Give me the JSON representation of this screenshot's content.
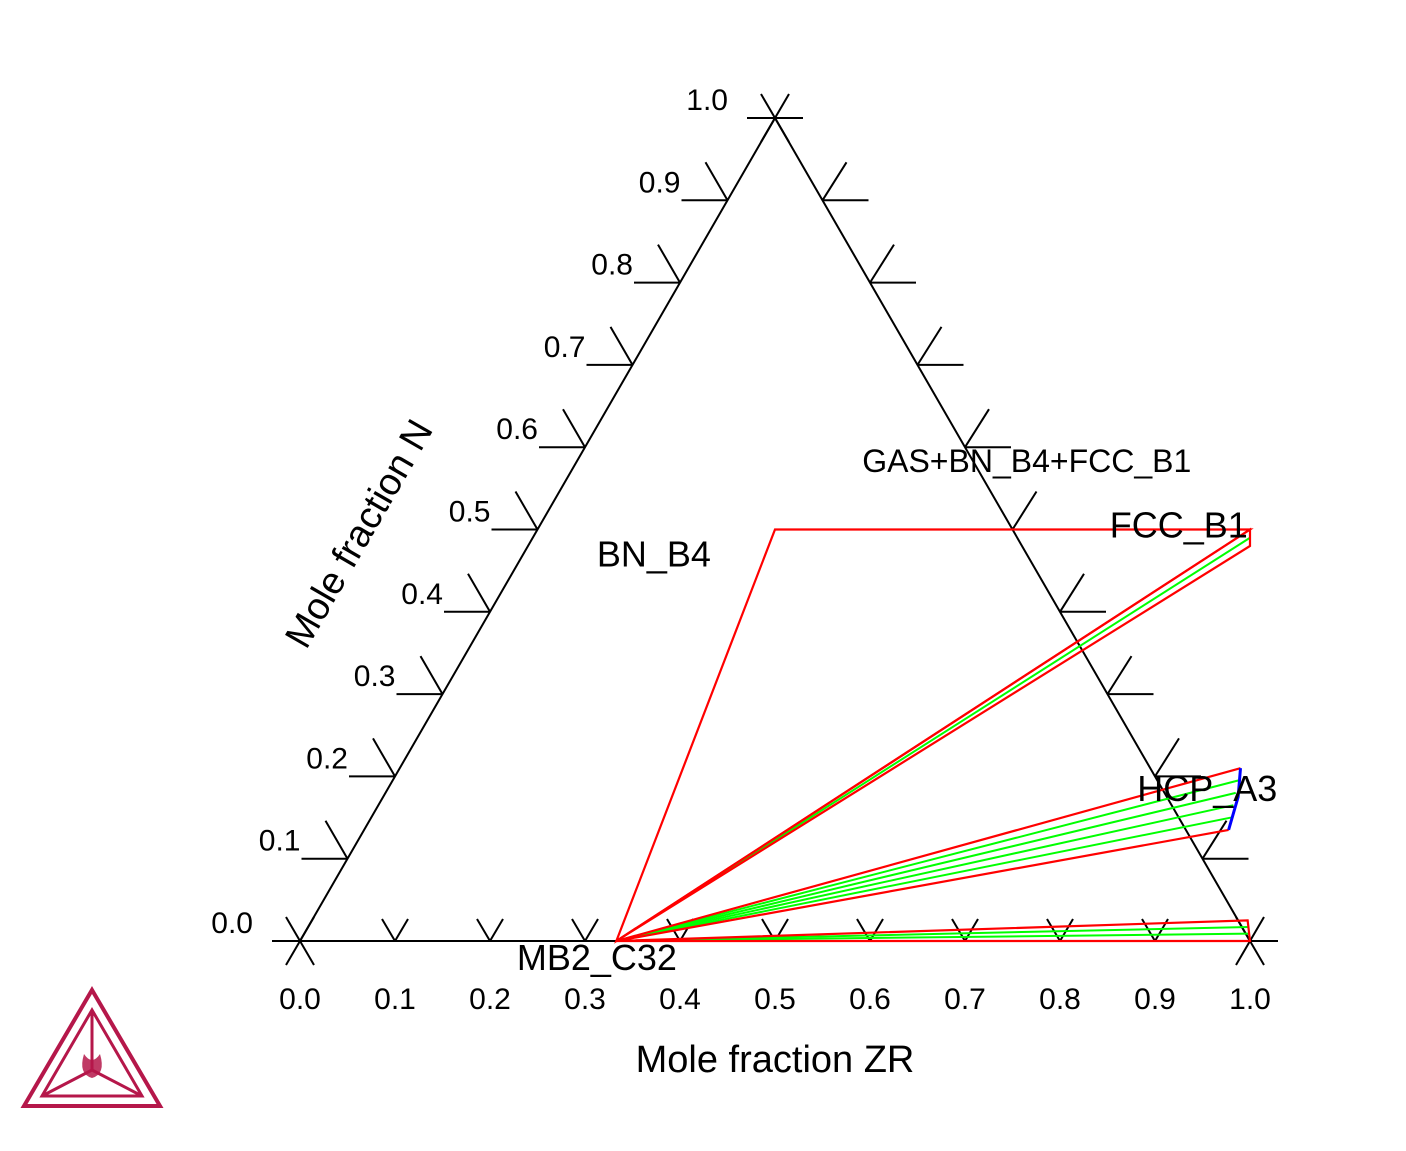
{
  "colors": {
    "axis": "#000000",
    "three_phase_boundary": "#ff0000",
    "tie_line": "#00ff00",
    "phase_boundary_blue": "#0000ff",
    "logo": "#b5174a"
  },
  "logo": {
    "icon": "thermo-calc-logo-icon"
  },
  "chart_data": {
    "type": "ternary",
    "title": "",
    "axes": {
      "bottom": {
        "label": "Mole fraction ZR",
        "ticks": [
          "0.0",
          "0.1",
          "0.2",
          "0.3",
          "0.4",
          "0.5",
          "0.6",
          "0.7",
          "0.8",
          "0.9",
          "1.0"
        ],
        "range": [
          0,
          1
        ]
      },
      "left": {
        "label": "Mole fraction N",
        "ticks": [
          "0.0",
          "0.1",
          "0.2",
          "0.3",
          "0.4",
          "0.5",
          "0.6",
          "0.7",
          "0.8",
          "0.9",
          "1.0"
        ],
        "range": [
          0,
          1
        ]
      }
    },
    "phase_labels": [
      {
        "text": "GAS+BN_B4+FCC_B1",
        "zr": 0.48,
        "n": 0.57,
        "kind": "region"
      },
      {
        "text": "BN_B4",
        "zr": 0.145,
        "n": 0.455,
        "kind": "phase"
      },
      {
        "text": "FCC_B1",
        "zr": 0.68,
        "n": 0.49,
        "kind": "phase"
      },
      {
        "text": "HCP_A3",
        "zr": 0.87,
        "n": 0.17,
        "kind": "phase"
      },
      {
        "text": "MB2_C32",
        "zr": 0.33,
        "n": -0.035,
        "kind": "phase"
      }
    ],
    "three_phase_triangles": [
      {
        "name": "BN_B4+FCC_B1+MB2_C32",
        "vertices": [
          [
            0.25,
            0.5
          ],
          [
            0.75,
            0.5
          ],
          [
            0.333,
            0.0
          ]
        ]
      },
      {
        "name": "FCC_B1+MB2_C32",
        "vertices": [
          [
            0.333,
            0.0
          ],
          [
            0.75,
            0.5
          ],
          [
            0.76,
            0.48
          ]
        ]
      },
      {
        "name": "MB2_C32+FCC_B1+HCP_A3 upper",
        "vertices": [
          [
            0.333,
            0.0
          ],
          [
            0.885,
            0.21
          ]
        ]
      },
      {
        "name": "MB2_C32+HCP_A3 lower",
        "vertices": [
          [
            0.333,
            0.0
          ],
          [
            0.91,
            0.135
          ]
        ]
      },
      {
        "name": "MB2_C32+HCP_A3+ZR",
        "vertices": [
          [
            0.333,
            0.0
          ],
          [
            0.985,
            0.025
          ],
          [
            1.0,
            0.0
          ]
        ]
      }
    ],
    "tie_lines": [
      {
        "from": [
          0.333,
          0.0
        ],
        "to": [
          0.755,
          0.49
        ]
      },
      {
        "from": [
          0.333,
          0.0
        ],
        "to": [
          0.89,
          0.195
        ]
      },
      {
        "from": [
          0.333,
          0.0
        ],
        "to": [
          0.895,
          0.18
        ]
      },
      {
        "from": [
          0.333,
          0.0
        ],
        "to": [
          0.9,
          0.165
        ]
      },
      {
        "from": [
          0.333,
          0.0
        ],
        "to": [
          0.905,
          0.15
        ]
      },
      {
        "from": [
          0.333,
          0.0
        ],
        "to": [
          0.99,
          0.017
        ]
      },
      {
        "from": [
          0.333,
          0.0
        ],
        "to": [
          0.995,
          0.009
        ]
      }
    ],
    "phase_boundary": [
      [
        0.885,
        0.21
      ],
      [
        0.9,
        0.175
      ],
      [
        0.91,
        0.135
      ]
    ],
    "grid": false,
    "legend": "none"
  }
}
